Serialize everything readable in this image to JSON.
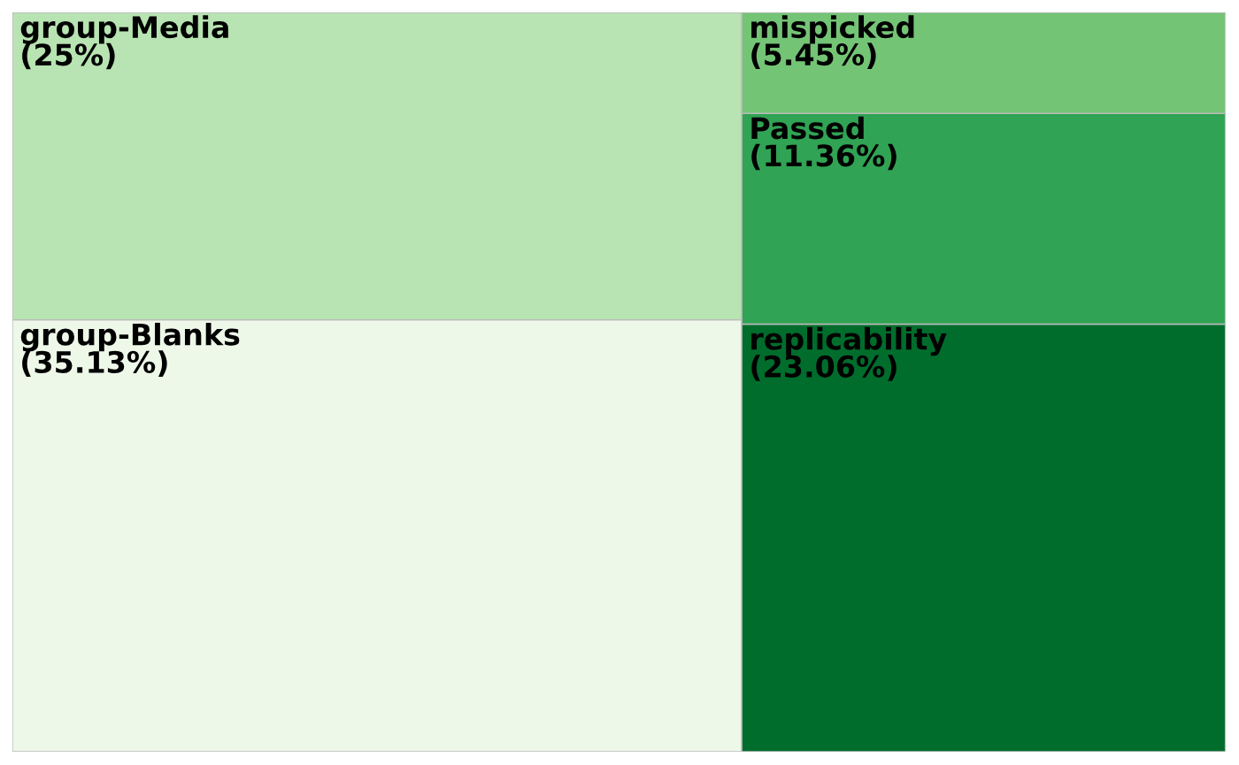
{
  "chart_data": {
    "type": "other",
    "categories": [
      "group-Blanks",
      "group-Media",
      "replicability",
      "Passed",
      "mispicked"
    ],
    "values": [
      35.13,
      25,
      23.06,
      11.36,
      5.45
    ],
    "value_labels": [
      "(35.13%)",
      "(25%)",
      "(23.06%)",
      "(11.36%)",
      "(5.45%)"
    ],
    "colors": [
      "#edf8e9",
      "#b8e3b2",
      "#006d2c",
      "#31a354",
      "#74c476"
    ]
  }
}
